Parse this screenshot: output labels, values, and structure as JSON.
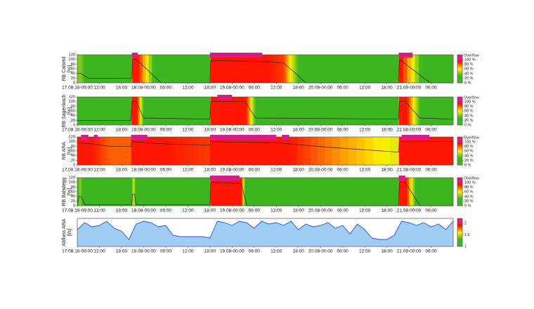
{
  "chart_data": [
    {
      "type": "level",
      "ylabel": "RB Calomil",
      "yunit": "[%]",
      "x": [
        6,
        7,
        9,
        20.8,
        21,
        22,
        28.8,
        42,
        42.2,
        50,
        58,
        62,
        66,
        68,
        93.2,
        93.4,
        101.8,
        108
      ],
      "values": [
        40,
        40,
        20,
        20,
        100,
        100,
        0,
        0,
        95,
        93,
        90,
        85,
        30,
        0,
        0,
        100,
        0,
        0
      ],
      "overflow": [
        [
          20.8,
          22.4
        ],
        [
          42,
          56.2
        ],
        [
          93.2,
          97
        ]
      ],
      "xlim": [
        6,
        108
      ],
      "xticks": [
        {
          "value": 6,
          "label": "17.08.16-06:00"
        },
        {
          "value": 12,
          "label": "12:00"
        },
        {
          "value": 18,
          "label": "18:00"
        },
        {
          "value": 24,
          "label": "18.08-00:00"
        },
        {
          "value": 30,
          "label": "06:00"
        },
        {
          "value": 36,
          "label": "12:00"
        },
        {
          "value": 42,
          "label": "18:00"
        },
        {
          "value": 48,
          "label": "19.08-00:00"
        },
        {
          "value": 54,
          "label": "06:00"
        },
        {
          "value": 60,
          "label": "12:00"
        },
        {
          "value": 66,
          "label": "18:00"
        },
        {
          "value": 72,
          "label": "20.08-00:00"
        },
        {
          "value": 78,
          "label": "06:00"
        },
        {
          "value": 84,
          "label": "12:00"
        },
        {
          "value": 90,
          "label": "18:00"
        },
        {
          "value": 96,
          "label": "21.08-00:00"
        },
        {
          "value": 102,
          "label": "06:00"
        }
      ],
      "ylim": [
        0,
        120
      ],
      "yticks": [
        0,
        20,
        40,
        60,
        80,
        100,
        120
      ],
      "clim": [
        0,
        100
      ],
      "overflow_label": "Overflow",
      "cticks": [
        {
          "value": 0,
          "label": "0 %"
        },
        {
          "value": 20,
          "label": "20 %"
        },
        {
          "value": 40,
          "label": "40 %"
        },
        {
          "value": 60,
          "label": "60 %"
        },
        {
          "value": 80,
          "label": "80 %"
        },
        {
          "value": 100,
          "label": "100 %"
        }
      ],
      "line_color": "#222222",
      "overflow_color": "#e5178f"
    },
    {
      "type": "level",
      "ylabel": "RB Sagenbach",
      "yunit": "[%]",
      "x": [
        6,
        20.6,
        20.8,
        22,
        24,
        42,
        42.2,
        51.5,
        54.4,
        93.2,
        93.4,
        95,
        99,
        108
      ],
      "values": [
        20,
        20,
        100,
        100,
        30,
        25,
        100,
        100,
        30,
        25,
        100,
        100,
        30,
        25
      ],
      "overflow": [
        [
          44,
          48
        ]
      ],
      "xlim": [
        6,
        108
      ],
      "xticks": [
        {
          "value": 6,
          "label": "17.08.16-06:00"
        },
        {
          "value": 12,
          "label": "12:00"
        },
        {
          "value": 18,
          "label": "18:00"
        },
        {
          "value": 24,
          "label": "18.08-00:00"
        },
        {
          "value": 30,
          "label": "06:00"
        },
        {
          "value": 36,
          "label": "12:00"
        },
        {
          "value": 42,
          "label": "18:00"
        },
        {
          "value": 48,
          "label": "19.08-00:00"
        },
        {
          "value": 54,
          "label": "06:00"
        },
        {
          "value": 60,
          "label": "12:00"
        },
        {
          "value": 66,
          "label": "18:00"
        },
        {
          "value": 72,
          "label": "20.08-00:00"
        },
        {
          "value": 78,
          "label": "06:00"
        },
        {
          "value": 84,
          "label": "12:00"
        },
        {
          "value": 90,
          "label": "18:00"
        },
        {
          "value": 96,
          "label": "21.08-00:00"
        },
        {
          "value": 102,
          "label": "06:00"
        }
      ],
      "ylim": [
        0,
        120
      ],
      "yticks": [
        0,
        20,
        40,
        60,
        80,
        100,
        120
      ],
      "clim": [
        0,
        100
      ],
      "overflow_label": "Overflow",
      "cticks": [
        {
          "value": 0,
          "label": "0 %"
        },
        {
          "value": 20,
          "label": "20 %"
        },
        {
          "value": 40,
          "label": "40 %"
        },
        {
          "value": 60,
          "label": "60 %"
        },
        {
          "value": 80,
          "label": "80 %"
        },
        {
          "value": 100,
          "label": "100 %"
        }
      ],
      "line_color": "#222222",
      "overflow_color": "#e5178f"
    },
    {
      "type": "level",
      "ylabel": "RB ARA",
      "yunit": "[%]",
      "x": [
        6,
        10,
        15,
        20.6,
        20.8,
        25,
        30,
        42,
        42.2,
        60,
        75,
        93.2,
        93.4,
        108
      ],
      "values": [
        95,
        90,
        80,
        80,
        100,
        95,
        90,
        85,
        100,
        95,
        75,
        55,
        100,
        100
      ],
      "overflow": [
        [
          7,
          9
        ],
        [
          10.5,
          11.5
        ],
        [
          20.6,
          25
        ],
        [
          42,
          60
        ],
        [
          61.5,
          63.5
        ],
        [
          94,
          101.5
        ]
      ],
      "xlim": [
        6,
        108
      ],
      "xticks": [
        {
          "value": 6,
          "label": "17.08.16-06:00"
        },
        {
          "value": 12,
          "label": "12:00"
        },
        {
          "value": 18,
          "label": "18:00"
        },
        {
          "value": 24,
          "label": "18.08-00:00"
        },
        {
          "value": 30,
          "label": "06:00"
        },
        {
          "value": 36,
          "label": "12:00"
        },
        {
          "value": 42,
          "label": "18:00"
        },
        {
          "value": 48,
          "label": "19.08-00:00"
        },
        {
          "value": 54,
          "label": "06:00"
        },
        {
          "value": 60,
          "label": "12:00"
        },
        {
          "value": 66,
          "label": "18:00"
        },
        {
          "value": 72,
          "label": "20.08-00:00"
        },
        {
          "value": 78,
          "label": "06:00"
        },
        {
          "value": 84,
          "label": "12:00"
        },
        {
          "value": 90,
          "label": "18:00"
        },
        {
          "value": 96,
          "label": "21.08-00:00"
        },
        {
          "value": 102,
          "label": "06:00"
        }
      ],
      "ylim": [
        0,
        120
      ],
      "yticks": [
        0,
        20,
        40,
        60,
        80,
        100,
        120
      ],
      "clim": [
        0,
        100
      ],
      "overflow_label": "Overflow",
      "cticks": [
        {
          "value": 0,
          "label": "0 %"
        },
        {
          "value": 20,
          "label": "20 %"
        },
        {
          "value": 40,
          "label": "40 %"
        },
        {
          "value": 60,
          "label": "60 %"
        },
        {
          "value": 80,
          "label": "80 %"
        },
        {
          "value": 100,
          "label": "100 %"
        }
      ],
      "line_color": "#222222",
      "overflow_color": "#e5178f"
    },
    {
      "type": "level",
      "ylabel": "RB Balsdegg",
      "yunit": "[%]",
      "x": [
        6,
        6.5,
        7,
        8,
        20.8,
        21,
        21.5,
        22,
        42,
        42.2,
        50.5,
        52,
        93.2,
        93.4,
        95,
        99,
        108
      ],
      "values": [
        5,
        40,
        40,
        5,
        5,
        50,
        50,
        5,
        5,
        100,
        95,
        0,
        0,
        100,
        100,
        0,
        0
      ],
      "overflow": [
        [
          42,
          50
        ],
        [
          93.2,
          95
        ]
      ],
      "xlim": [
        6,
        108
      ],
      "xticks": [
        {
          "value": 6,
          "label": "17.08.16-06:00"
        },
        {
          "value": 12,
          "label": "12:00"
        },
        {
          "value": 18,
          "label": "18:00"
        },
        {
          "value": 24,
          "label": "18.08-00:00"
        },
        {
          "value": 30,
          "label": "06:00"
        },
        {
          "value": 36,
          "label": "12:00"
        },
        {
          "value": 42,
          "label": "18:00"
        },
        {
          "value": 48,
          "label": "19.08-00:00"
        },
        {
          "value": 54,
          "label": "06:00"
        },
        {
          "value": 60,
          "label": "12:00"
        },
        {
          "value": 66,
          "label": "18:00"
        },
        {
          "value": 72,
          "label": "20.08-00:00"
        },
        {
          "value": 78,
          "label": "06:00"
        },
        {
          "value": 84,
          "label": "12:00"
        },
        {
          "value": 90,
          "label": "18:00"
        },
        {
          "value": 96,
          "label": "21.08-00:00"
        },
        {
          "value": 102,
          "label": "06:00"
        }
      ],
      "ylim": [
        0,
        120
      ],
      "yticks": [
        0,
        20,
        40,
        60,
        80,
        100,
        120
      ],
      "clim": [
        0,
        100
      ],
      "overflow_label": "Overflow",
      "cticks": [
        {
          "value": 0,
          "label": "0 %"
        },
        {
          "value": 20,
          "label": "20 %"
        },
        {
          "value": 40,
          "label": "40 %"
        },
        {
          "value": 60,
          "label": "60 %"
        },
        {
          "value": 80,
          "label": "80 %"
        },
        {
          "value": 100,
          "label": "100 %"
        }
      ],
      "line_color": "#222222",
      "overflow_color": "#e5178f"
    },
    {
      "type": "area",
      "ylabel": "Abfluss ARA",
      "yunit": "[l/s]",
      "x": [
        6,
        8,
        10,
        12,
        14,
        16,
        18,
        20,
        22,
        24,
        26,
        28,
        30,
        32,
        34,
        36,
        38,
        40,
        42,
        44,
        46,
        48,
        50,
        52,
        54,
        56,
        58,
        60,
        62,
        64,
        66,
        68,
        70,
        72,
        74,
        76,
        78,
        80,
        82,
        84,
        86,
        88,
        90,
        92,
        94,
        96,
        98,
        100,
        102,
        104,
        106,
        108
      ],
      "values": [
        1.2,
        1.7,
        1.4,
        1.5,
        1.8,
        1.3,
        1.1,
        0.5,
        1.6,
        1.8,
        1.7,
        1.4,
        1.5,
        0.8,
        0.7,
        0.7,
        0.7,
        0.7,
        0.6,
        1.8,
        1.7,
        1.5,
        1.8,
        1.7,
        1.3,
        1.8,
        1.6,
        1.7,
        1.5,
        1.8,
        1.2,
        1.6,
        1.4,
        1.5,
        1.7,
        1.3,
        1.5,
        0.9,
        1.6,
        1.2,
        0.6,
        0.5,
        0.5,
        0.8,
        1.8,
        1.7,
        1.5,
        1.7,
        1.4,
        1.6,
        1.2,
        1.8
      ],
      "xlim": [
        6,
        108
      ],
      "xticks": [
        {
          "value": 6,
          "label": "17.08.16-06:00"
        },
        {
          "value": 12,
          "label": "12:00"
        },
        {
          "value": 18,
          "label": "18:00"
        },
        {
          "value": 24,
          "label": "18.08-00:00"
        },
        {
          "value": 30,
          "label": "06:00"
        },
        {
          "value": 36,
          "label": "12:00"
        },
        {
          "value": 42,
          "label": "18:00"
        },
        {
          "value": 48,
          "label": "19.08-00:00"
        },
        {
          "value": 54,
          "label": "06:00"
        },
        {
          "value": 60,
          "label": "12:00"
        },
        {
          "value": 66,
          "label": "18:00"
        },
        {
          "value": 72,
          "label": "20.08-00:00"
        },
        {
          "value": 78,
          "label": "06:00"
        },
        {
          "value": 84,
          "label": "12:00"
        },
        {
          "value": 90,
          "label": "18:00"
        },
        {
          "value": 96,
          "label": "21.08-00:00"
        },
        {
          "value": 102,
          "label": "06:00"
        }
      ],
      "ylim": [
        0,
        2
      ],
      "clim": [
        1,
        2
      ],
      "cticks": [
        1,
        1.5,
        2
      ],
      "line_color": "#2b4fd8",
      "fill_color": "#9fcdf3",
      "overflow_color": "#e5178f"
    }
  ]
}
